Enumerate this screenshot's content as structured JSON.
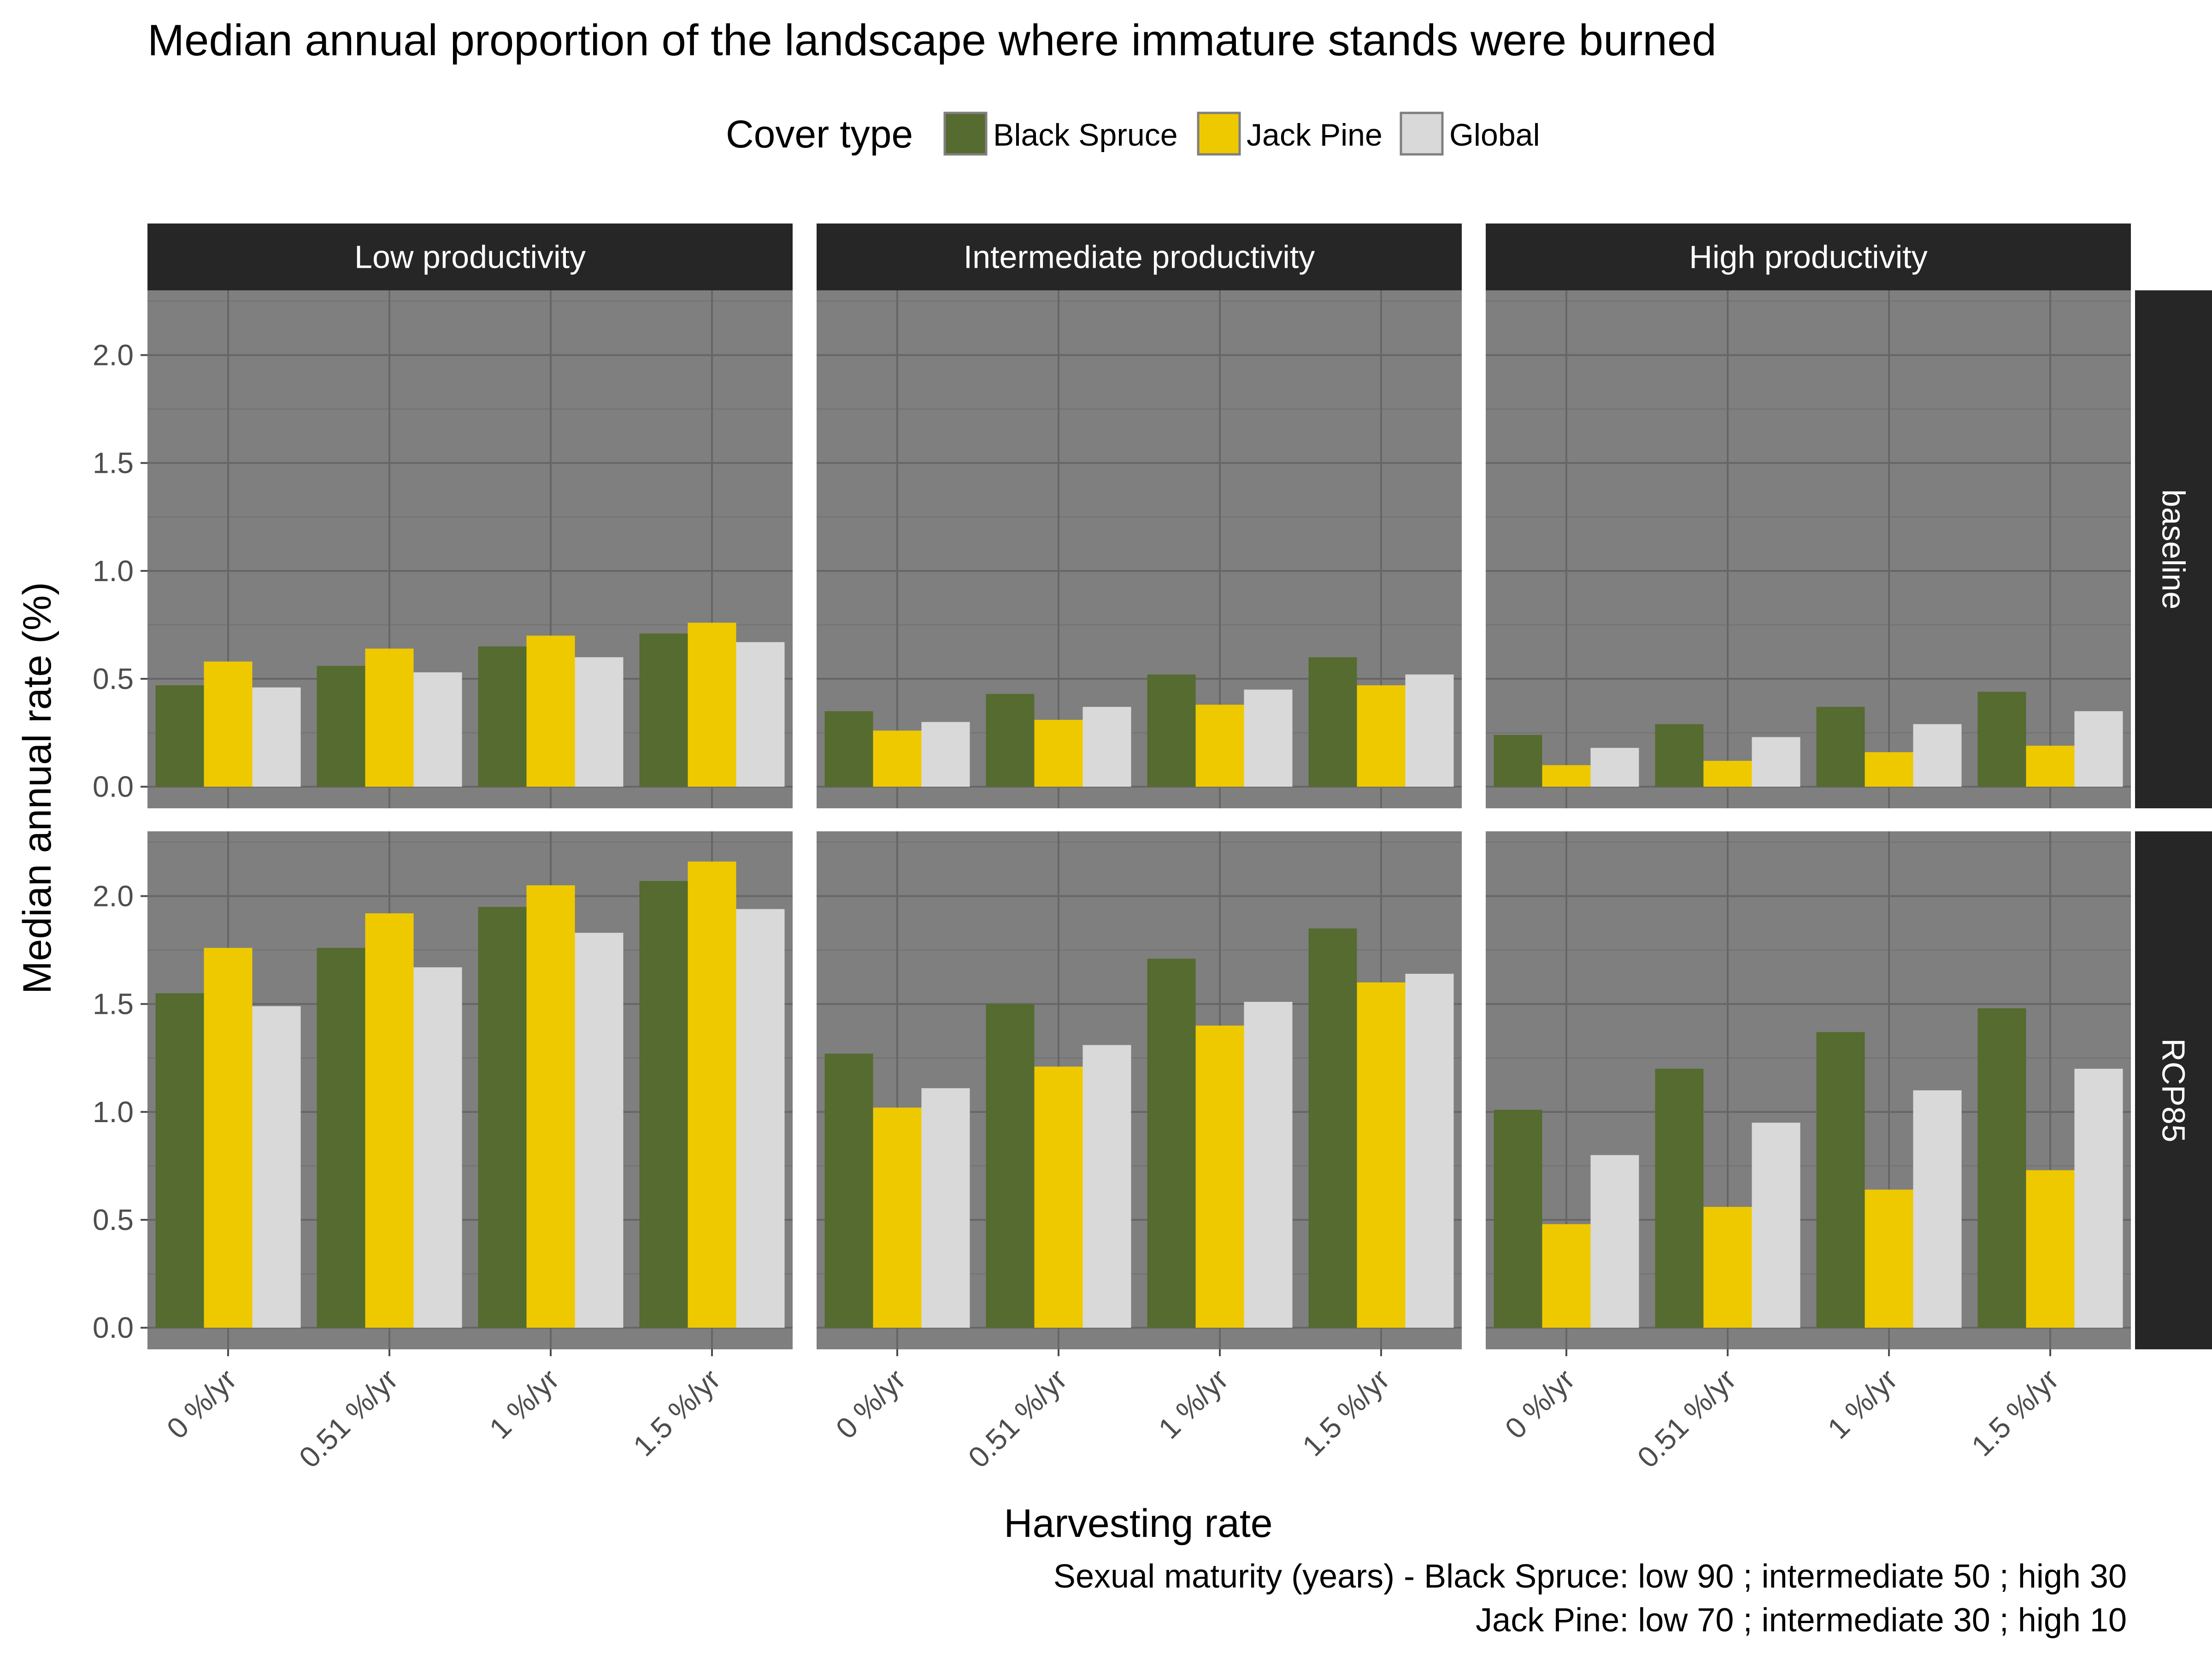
{
  "chart_data": {
    "type": "bar",
    "title": "Median annual proportion of the landscape where immature stands were burned",
    "legend": {
      "title": "Cover type",
      "position": "top",
      "entries": [
        "Black Spruce",
        "Jack Pine",
        "Global"
      ]
    },
    "colors": {
      "Black Spruce": "#556b2f",
      "Jack Pine": "#eec900",
      "Global": "#d9d9d9",
      "panel_background": "#7f7f7f",
      "grid_major": "#666666",
      "grid_minor": "#737373",
      "strip_background": "#262626"
    },
    "xlabel": "Harvesting rate",
    "ylabel": "Median annual rate (%)",
    "categories": [
      "0 %/yr",
      "0.51 %/yr",
      "1 %/yr",
      "1.5 %/yr"
    ],
    "ylim": [
      -0.1,
      2.3
    ],
    "yticks": [
      "0.0",
      "0.5",
      "1.0",
      "1.5",
      "2.0"
    ],
    "grid": true,
    "column_facets": [
      "Low productivity",
      "Intermediate productivity",
      "High productivity"
    ],
    "row_facets": [
      "baseline",
      "RCP85"
    ],
    "panels": [
      {
        "row": "baseline",
        "column": "Low productivity",
        "series": [
          {
            "name": "Black Spruce",
            "values": [
              0.47,
              0.56,
              0.65,
              0.71
            ]
          },
          {
            "name": "Jack Pine",
            "values": [
              0.58,
              0.64,
              0.7,
              0.76
            ]
          },
          {
            "name": "Global",
            "values": [
              0.46,
              0.53,
              0.6,
              0.67
            ]
          }
        ]
      },
      {
        "row": "baseline",
        "column": "Intermediate productivity",
        "series": [
          {
            "name": "Black Spruce",
            "values": [
              0.35,
              0.43,
              0.52,
              0.6
            ]
          },
          {
            "name": "Jack Pine",
            "values": [
              0.26,
              0.31,
              0.38,
              0.47
            ]
          },
          {
            "name": "Global",
            "values": [
              0.3,
              0.37,
              0.45,
              0.52
            ]
          }
        ]
      },
      {
        "row": "baseline",
        "column": "High productivity",
        "series": [
          {
            "name": "Black Spruce",
            "values": [
              0.24,
              0.29,
              0.37,
              0.44
            ]
          },
          {
            "name": "Jack Pine",
            "values": [
              0.1,
              0.12,
              0.16,
              0.19
            ]
          },
          {
            "name": "Global",
            "values": [
              0.18,
              0.23,
              0.29,
              0.35
            ]
          }
        ]
      },
      {
        "row": "RCP85",
        "column": "Low productivity",
        "series": [
          {
            "name": "Black Spruce",
            "values": [
              1.55,
              1.76,
              1.95,
              2.07
            ]
          },
          {
            "name": "Jack Pine",
            "values": [
              1.76,
              1.92,
              2.05,
              2.16
            ]
          },
          {
            "name": "Global",
            "values": [
              1.49,
              1.67,
              1.83,
              1.94
            ]
          }
        ]
      },
      {
        "row": "RCP85",
        "column": "Intermediate productivity",
        "series": [
          {
            "name": "Black Spruce",
            "values": [
              1.27,
              1.5,
              1.71,
              1.85
            ]
          },
          {
            "name": "Jack Pine",
            "values": [
              1.02,
              1.21,
              1.4,
              1.6
            ]
          },
          {
            "name": "Global",
            "values": [
              1.11,
              1.31,
              1.51,
              1.64
            ]
          }
        ]
      },
      {
        "row": "RCP85",
        "column": "High productivity",
        "series": [
          {
            "name": "Black Spruce",
            "values": [
              1.01,
              1.2,
              1.37,
              1.48
            ]
          },
          {
            "name": "Jack Pine",
            "values": [
              0.48,
              0.56,
              0.64,
              0.73
            ]
          },
          {
            "name": "Global",
            "values": [
              0.8,
              0.95,
              1.1,
              1.2
            ]
          }
        ]
      }
    ],
    "caption": [
      "Sexual maturity (years) - Black Spruce: low 90 ; intermediate 50 ; high 30",
      "Jack Pine: low 70 ; intermediate 30 ; high 10"
    ]
  }
}
